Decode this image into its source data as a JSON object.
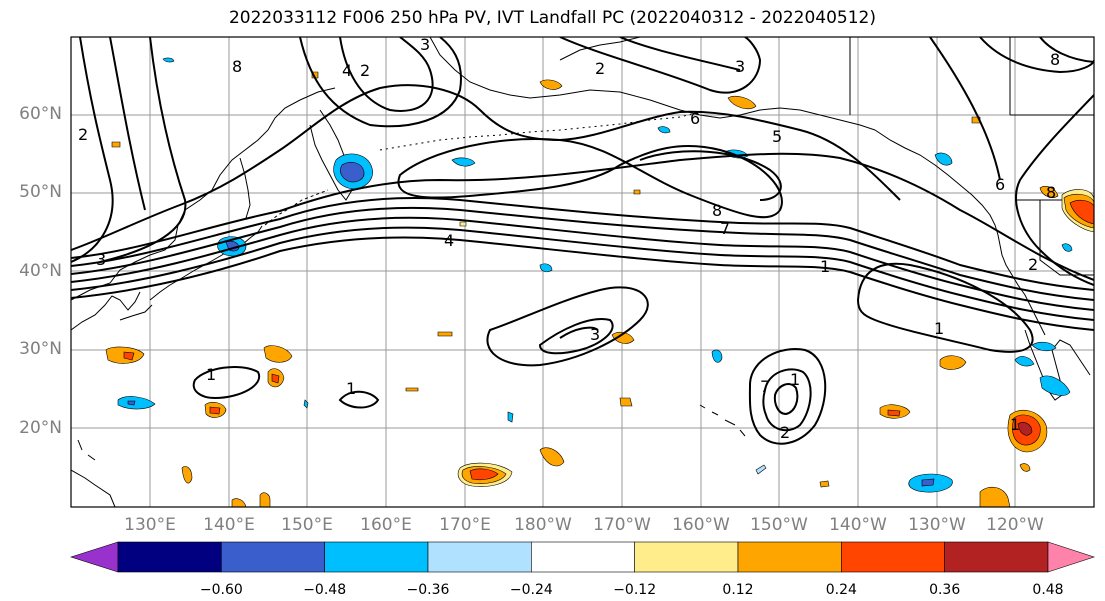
{
  "title": "2022033112 F006 250 hPa PV, IVT Landfall PC (2022040312 - 2022040512)",
  "latitude_labels": [
    "60°N",
    "50°N",
    "40°N",
    "30°N",
    "20°N"
  ],
  "longitude_labels": [
    "130°E",
    "140°E",
    "150°E",
    "160°E",
    "170°E",
    "180°W",
    "170°W",
    "160°W",
    "150°W",
    "140°W",
    "130°W",
    "120°W"
  ],
  "contour_labels": [
    "2",
    "8",
    "4",
    "2",
    "3",
    "6",
    "5",
    "3",
    "8",
    "2",
    "4",
    "1",
    "3",
    "8",
    "7",
    "8",
    "6",
    "1",
    "1",
    "3",
    "1",
    "1",
    "2",
    "7",
    "2",
    "1"
  ],
  "colorbar": {
    "tick_labels": [
      "−0.60",
      "−0.48",
      "−0.36",
      "−0.24",
      "−0.12",
      "0.12",
      "0.24",
      "0.36",
      "0.48",
      "0.60"
    ],
    "colors": {
      "under": "#9932cc",
      "bins": [
        "#000080",
        "#3a5fcd",
        "#00bfff",
        "#b0e2ff",
        "#ffffff",
        "#ffec8b",
        "#ffa500",
        "#ff4500",
        "#b22222"
      ],
      "over": "#ff82ab"
    }
  }
}
